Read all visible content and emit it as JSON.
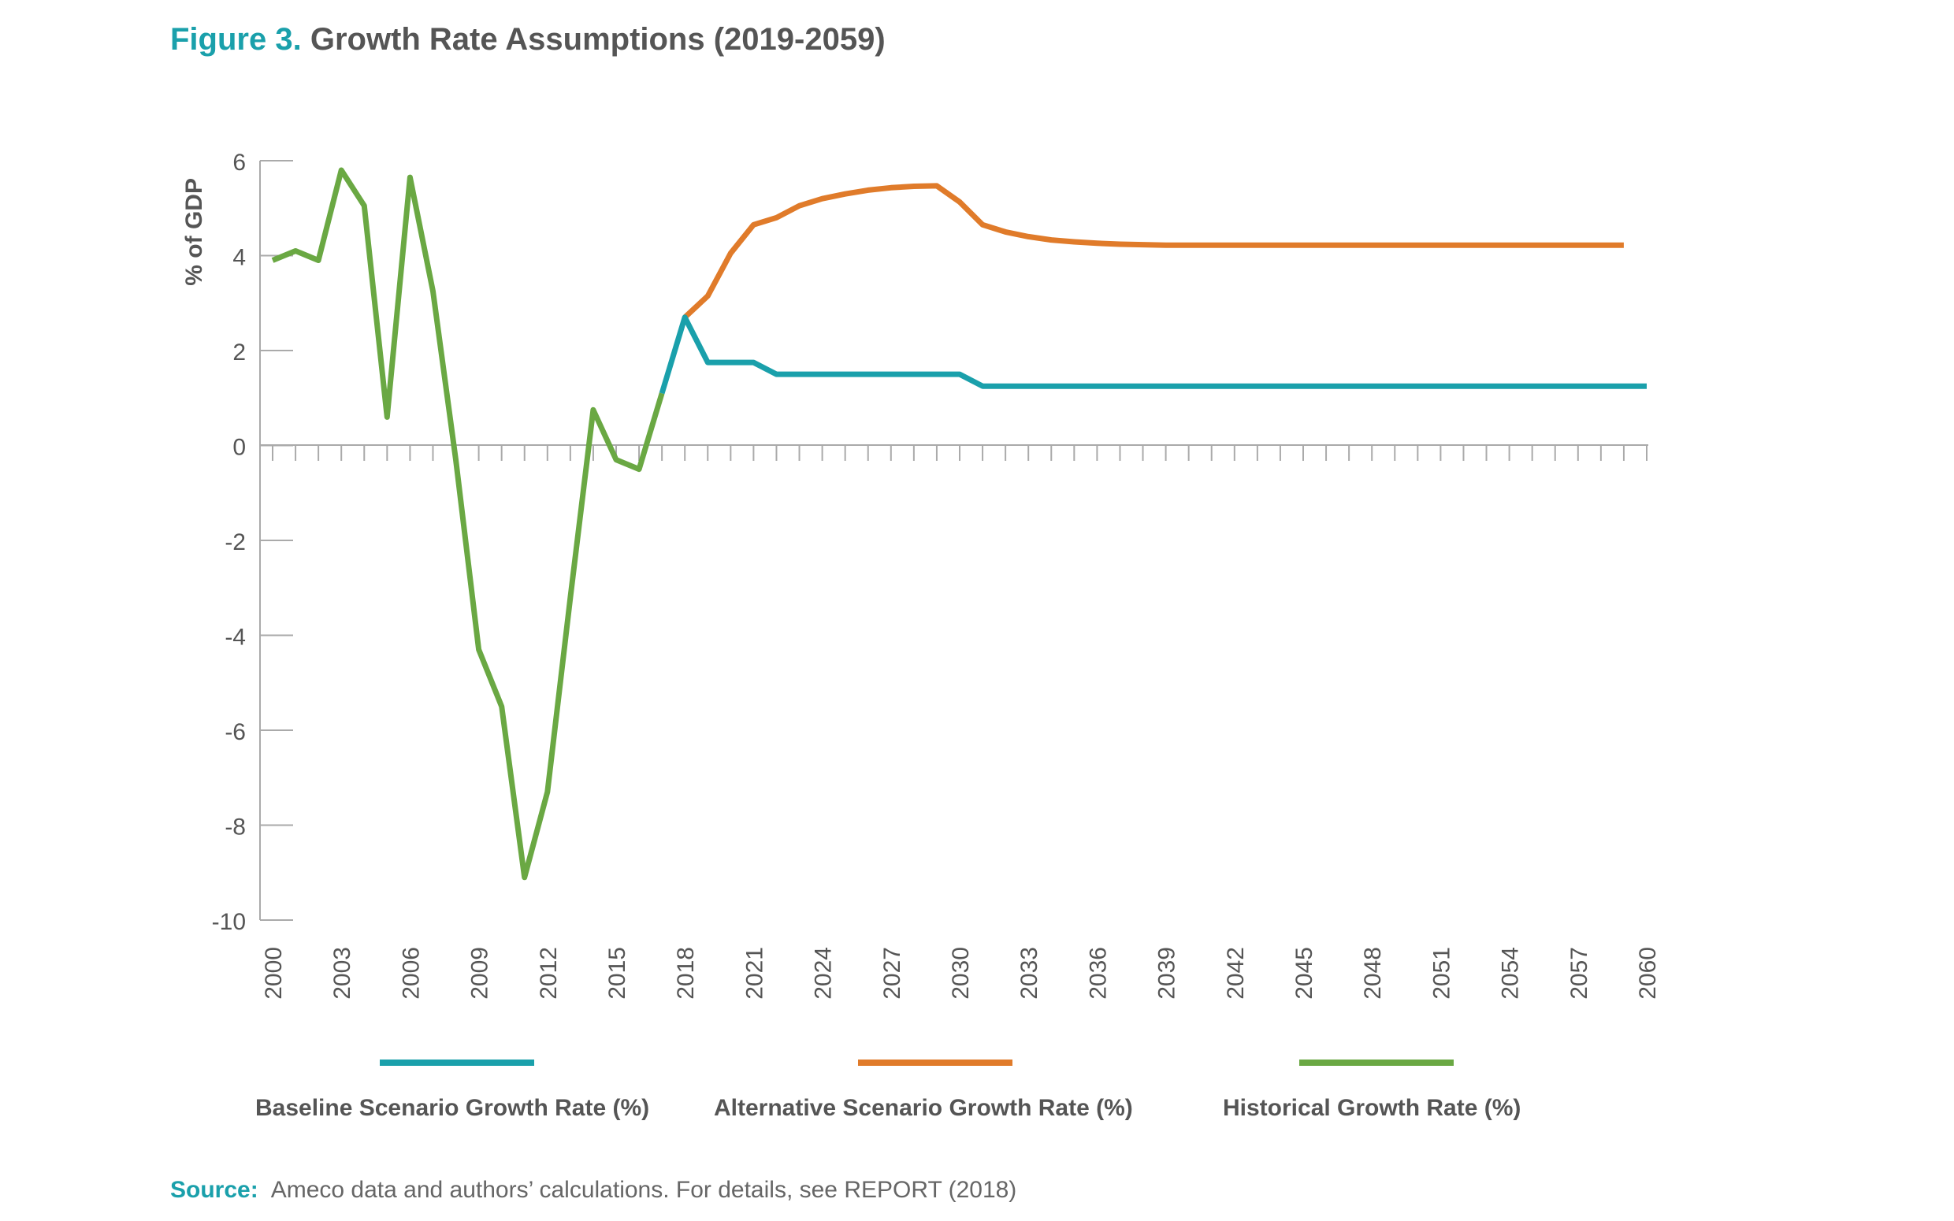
{
  "figure": {
    "number_label": "Figure 3.",
    "title": "Growth Rate Assumptions (2019-2059)"
  },
  "source": {
    "label": "Source:",
    "text": "Ameco data and authors’ calculations. For details, see REPORT (2018)"
  },
  "colors": {
    "baseline": "#1aa0ab",
    "alternative": "#e07b2a",
    "historical": "#6aa843",
    "axis": "#aaaaaa",
    "text": "#555555"
  },
  "chart_data": {
    "type": "line",
    "title": "Growth Rate Assumptions (2019-2059)",
    "ylabel": "% of GDP",
    "xlabel": "",
    "xlim": [
      2000,
      2060
    ],
    "ylim": [
      -10,
      6
    ],
    "yticks": [
      6,
      4,
      2,
      0,
      -2,
      -4,
      -6,
      -8,
      -10
    ],
    "xticks": [
      2000,
      2003,
      2006,
      2009,
      2012,
      2015,
      2018,
      2021,
      2024,
      2027,
      2030,
      2033,
      2036,
      2039,
      2042,
      2045,
      2048,
      2051,
      2054,
      2057,
      2060
    ],
    "grid": false,
    "legend_position": "bottom",
    "series": [
      {
        "name": "Baseline Scenario Growth Rate (%)",
        "color": "#1aa0ab",
        "x": [
          2017,
          2018,
          2019,
          2020,
          2021,
          2022,
          2023,
          2024,
          2025,
          2026,
          2027,
          2028,
          2029,
          2030,
          2031,
          2032,
          2033,
          2034,
          2035,
          2036,
          2037,
          2038,
          2039,
          2040,
          2041,
          2042,
          2043,
          2044,
          2045,
          2046,
          2047,
          2048,
          2049,
          2050,
          2051,
          2052,
          2053,
          2054,
          2055,
          2056,
          2057,
          2058,
          2059,
          2060
        ],
        "y": [
          1.1,
          2.7,
          1.75,
          1.75,
          1.75,
          1.5,
          1.5,
          1.5,
          1.5,
          1.5,
          1.5,
          1.5,
          1.5,
          1.5,
          1.25,
          1.25,
          1.25,
          1.25,
          1.25,
          1.25,
          1.25,
          1.25,
          1.25,
          1.25,
          1.25,
          1.25,
          1.25,
          1.25,
          1.25,
          1.25,
          1.25,
          1.25,
          1.25,
          1.25,
          1.25,
          1.25,
          1.25,
          1.25,
          1.25,
          1.25,
          1.25,
          1.25,
          1.25,
          1.25
        ]
      },
      {
        "name": "Alternative Scenario Growth Rate (%)",
        "color": "#e07b2a",
        "x": [
          2018,
          2019,
          2020,
          2021,
          2022,
          2023,
          2024,
          2025,
          2026,
          2027,
          2028,
          2029,
          2030,
          2031,
          2032,
          2033,
          2034,
          2035,
          2036,
          2037,
          2038,
          2039,
          2040,
          2041,
          2042,
          2043,
          2044,
          2045,
          2046,
          2047,
          2048,
          2049,
          2050,
          2051,
          2052,
          2053,
          2054,
          2055,
          2056,
          2057,
          2058,
          2059
        ],
        "y": [
          2.7,
          3.15,
          4.05,
          4.65,
          4.8,
          5.05,
          5.2,
          5.3,
          5.38,
          5.43,
          5.46,
          5.47,
          5.13,
          4.65,
          4.5,
          4.4,
          4.33,
          4.29,
          4.26,
          4.24,
          4.23,
          4.22,
          4.22,
          4.22,
          4.22,
          4.22,
          4.22,
          4.22,
          4.22,
          4.22,
          4.22,
          4.22,
          4.22,
          4.22,
          4.22,
          4.22,
          4.22,
          4.22,
          4.22,
          4.22,
          4.22,
          4.22
        ]
      },
      {
        "name": "Historical Growth Rate (%)",
        "color": "#6aa843",
        "x": [
          2000,
          2001,
          2002,
          2003,
          2004,
          2005,
          2006,
          2007,
          2008,
          2009,
          2010,
          2011,
          2012,
          2013,
          2014,
          2015,
          2016,
          2017
        ],
        "y": [
          3.9,
          4.1,
          3.9,
          5.8,
          5.05,
          0.6,
          5.65,
          3.25,
          -0.3,
          -4.3,
          -5.5,
          -9.1,
          -7.3,
          -3.2,
          0.75,
          -0.3,
          -0.5,
          1.1
        ]
      }
    ]
  }
}
